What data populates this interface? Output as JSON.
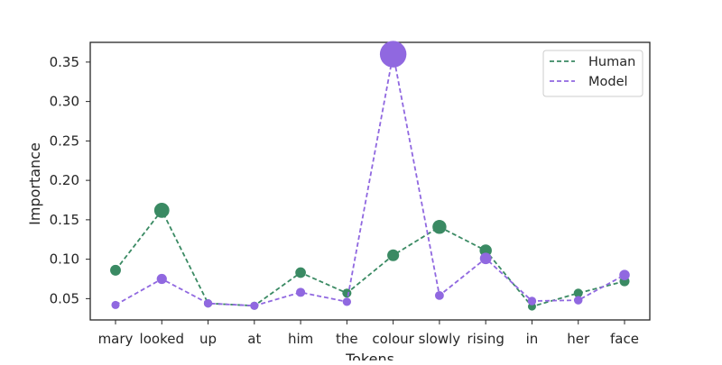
{
  "chart_data": {
    "type": "line",
    "title": "",
    "xlabel": "Tokens",
    "ylabel": "Importance",
    "categories": [
      "mary",
      "looked",
      "up",
      "at",
      "him",
      "the",
      "colour",
      "slowly",
      "rising",
      "in",
      "her",
      "face"
    ],
    "ylim": [
      0.023,
      0.375
    ],
    "yticks": [
      0.05,
      0.1,
      0.15,
      0.2,
      0.25,
      0.3,
      0.35
    ],
    "ytick_labels": [
      "0.05",
      "0.10",
      "0.15",
      "0.20",
      "0.25",
      "0.30",
      "0.35"
    ],
    "grid": false,
    "legend_position": "top-right",
    "line_style": "dashed",
    "marker_size_encodes": "value",
    "series": [
      {
        "name": "Human",
        "color": "#3a8a63",
        "values": [
          0.086,
          0.162,
          0.044,
          0.041,
          0.083,
          0.057,
          0.105,
          0.141,
          0.111,
          0.04,
          0.057,
          0.072
        ]
      },
      {
        "name": "Model",
        "color": "#9068e0",
        "values": [
          0.042,
          0.075,
          0.044,
          0.041,
          0.058,
          0.046,
          0.36,
          0.054,
          0.101,
          0.047,
          0.048,
          0.08
        ]
      }
    ]
  }
}
